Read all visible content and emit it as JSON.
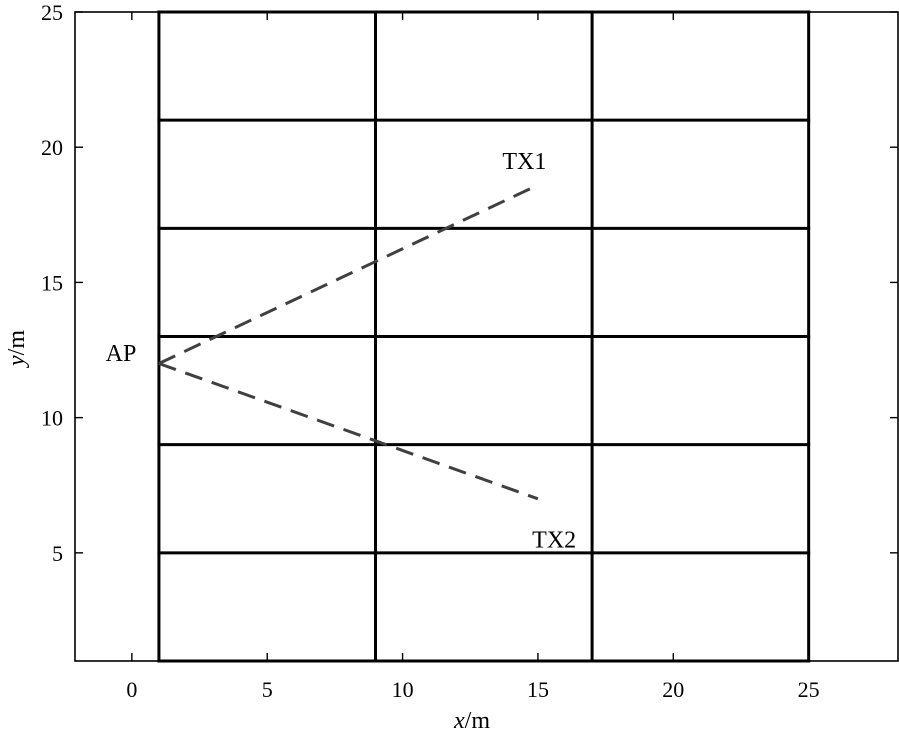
{
  "chart_data": {
    "type": "line",
    "title": "",
    "xlabel": {
      "var": "x",
      "unit": "/m"
    },
    "ylabel": {
      "var": "y",
      "unit": "/m"
    },
    "xlim": [
      -2.1,
      28.3
    ],
    "ylim": [
      1,
      25
    ],
    "xticks": [
      0,
      5,
      10,
      15,
      20,
      25
    ],
    "yticks": [
      5,
      10,
      15,
      20,
      25
    ],
    "grid": false,
    "walls": {
      "vertical": [
        {
          "x": 1,
          "y": [
            1,
            25
          ]
        },
        {
          "x": 9,
          "y": [
            1,
            25
          ]
        },
        {
          "x": 17,
          "y": [
            1,
            25
          ]
        },
        {
          "x": 25,
          "y": [
            1,
            25
          ]
        }
      ],
      "horizontal": [
        {
          "y": 25,
          "x": [
            1,
            25
          ]
        },
        {
          "y": 21,
          "x": [
            1,
            25
          ]
        },
        {
          "y": 17,
          "x": [
            1,
            25
          ]
        },
        {
          "y": 13,
          "x": [
            1,
            25
          ]
        },
        {
          "y": 9,
          "x": [
            1,
            25
          ]
        },
        {
          "y": 5,
          "x": [
            1,
            25
          ]
        },
        {
          "y": 1,
          "x": [
            1,
            25
          ]
        }
      ]
    },
    "series": [
      {
        "x": [
          1,
          15
        ],
        "y": [
          12,
          18.6
        ],
        "style": "dashed",
        "color": "#404040"
      },
      {
        "x": [
          1,
          15
        ],
        "y": [
          12,
          7
        ],
        "style": "dashed",
        "color": "#404040"
      }
    ],
    "annotations": [
      {
        "text": "AP",
        "x": -0.4,
        "y": 12.1,
        "anchor": "middle"
      },
      {
        "text": "TX1",
        "x": 14.5,
        "y": 19.2,
        "anchor": "middle"
      },
      {
        "text": "TX2",
        "x": 15.6,
        "y": 5.2,
        "anchor": "middle"
      }
    ],
    "colors": {
      "walls": "#000000",
      "paths": "#404040",
      "axes": "#000000"
    }
  }
}
